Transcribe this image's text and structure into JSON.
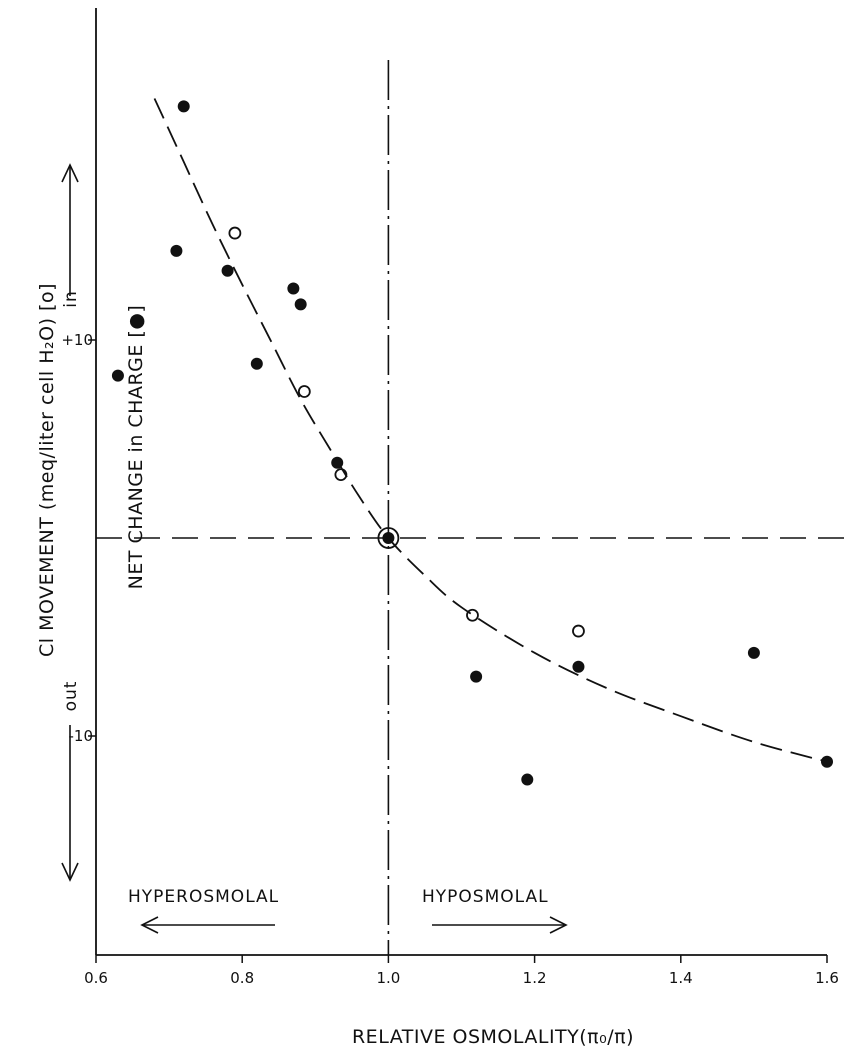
{
  "chart_data": {
    "type": "scatter",
    "title": "",
    "xlabel": "RELATIVE OSMOLALITY(π₀/π)",
    "ylabel": "Cl MOVEMENT (meq/liter cell H₂O) [o]",
    "ylabel_secondary": "NET CHANGE in CHARGE [●]",
    "xlim": [
      0.6,
      1.6
    ],
    "ylim": [
      -16,
      22
    ],
    "x_ticks": [
      {
        "value": 0.6,
        "label": "0.6"
      },
      {
        "value": 0.8,
        "label": "0.8"
      },
      {
        "value": 1.0,
        "label": "1.0"
      },
      {
        "value": 1.2,
        "label": "1.2"
      },
      {
        "value": 1.4,
        "label": "1.4"
      },
      {
        "value": 1.6,
        "label": "1.6"
      }
    ],
    "y_ticks": [
      {
        "value": 10,
        "label": "+10"
      },
      {
        "value": -10,
        "label": "-10"
      }
    ],
    "reference_lines": {
      "x": 1.0,
      "y": 0
    },
    "series": [
      {
        "name": "net change in charge",
        "marker": "filled-circle",
        "points": [
          {
            "x": 0.72,
            "y": 21.8
          },
          {
            "x": 0.71,
            "y": 14.5
          },
          {
            "x": 0.78,
            "y": 13.5
          },
          {
            "x": 0.87,
            "y": 12.6
          },
          {
            "x": 0.88,
            "y": 11.8
          },
          {
            "x": 0.82,
            "y": 8.8
          },
          {
            "x": 0.63,
            "y": 8.2
          },
          {
            "x": 0.93,
            "y": 3.8
          },
          {
            "x": 1.0,
            "y": 0
          },
          {
            "x": 1.12,
            "y": -7.0
          },
          {
            "x": 1.19,
            "y": -12.2
          },
          {
            "x": 1.26,
            "y": -6.5
          },
          {
            "x": 1.5,
            "y": -5.8
          },
          {
            "x": 1.6,
            "y": -11.3
          }
        ]
      },
      {
        "name": "Cl movement",
        "marker": "open-circle",
        "points": [
          {
            "x": 0.79,
            "y": 15.4
          },
          {
            "x": 0.885,
            "y": 7.4
          },
          {
            "x": 0.935,
            "y": 3.2
          },
          {
            "x": 1.0,
            "y": 0
          },
          {
            "x": 1.115,
            "y": -3.9
          },
          {
            "x": 1.26,
            "y": -4.7
          }
        ]
      }
    ],
    "fit_curve": {
      "style": "dashed",
      "points": [
        {
          "x": 0.68,
          "y": 22.2
        },
        {
          "x": 0.72,
          "y": 19.0
        },
        {
          "x": 0.76,
          "y": 15.8
        },
        {
          "x": 0.8,
          "y": 12.8
        },
        {
          "x": 0.84,
          "y": 9.9
        },
        {
          "x": 0.88,
          "y": 7.0
        },
        {
          "x": 0.92,
          "y": 4.5
        },
        {
          "x": 0.96,
          "y": 2.1
        },
        {
          "x": 1.0,
          "y": 0
        },
        {
          "x": 1.05,
          "y": -1.9
        },
        {
          "x": 1.1,
          "y": -3.5
        },
        {
          "x": 1.2,
          "y": -5.8
        },
        {
          "x": 1.3,
          "y": -7.6
        },
        {
          "x": 1.4,
          "y": -9.0
        },
        {
          "x": 1.5,
          "y": -10.3
        },
        {
          "x": 1.6,
          "y": -11.3
        }
      ]
    },
    "annotations": {
      "in": "in",
      "out": "out",
      "hyperosmolal": "HYPEROSMOLAL",
      "hyposmolal": "HYPOSMOLAL"
    },
    "grid": false,
    "legend": "none"
  }
}
